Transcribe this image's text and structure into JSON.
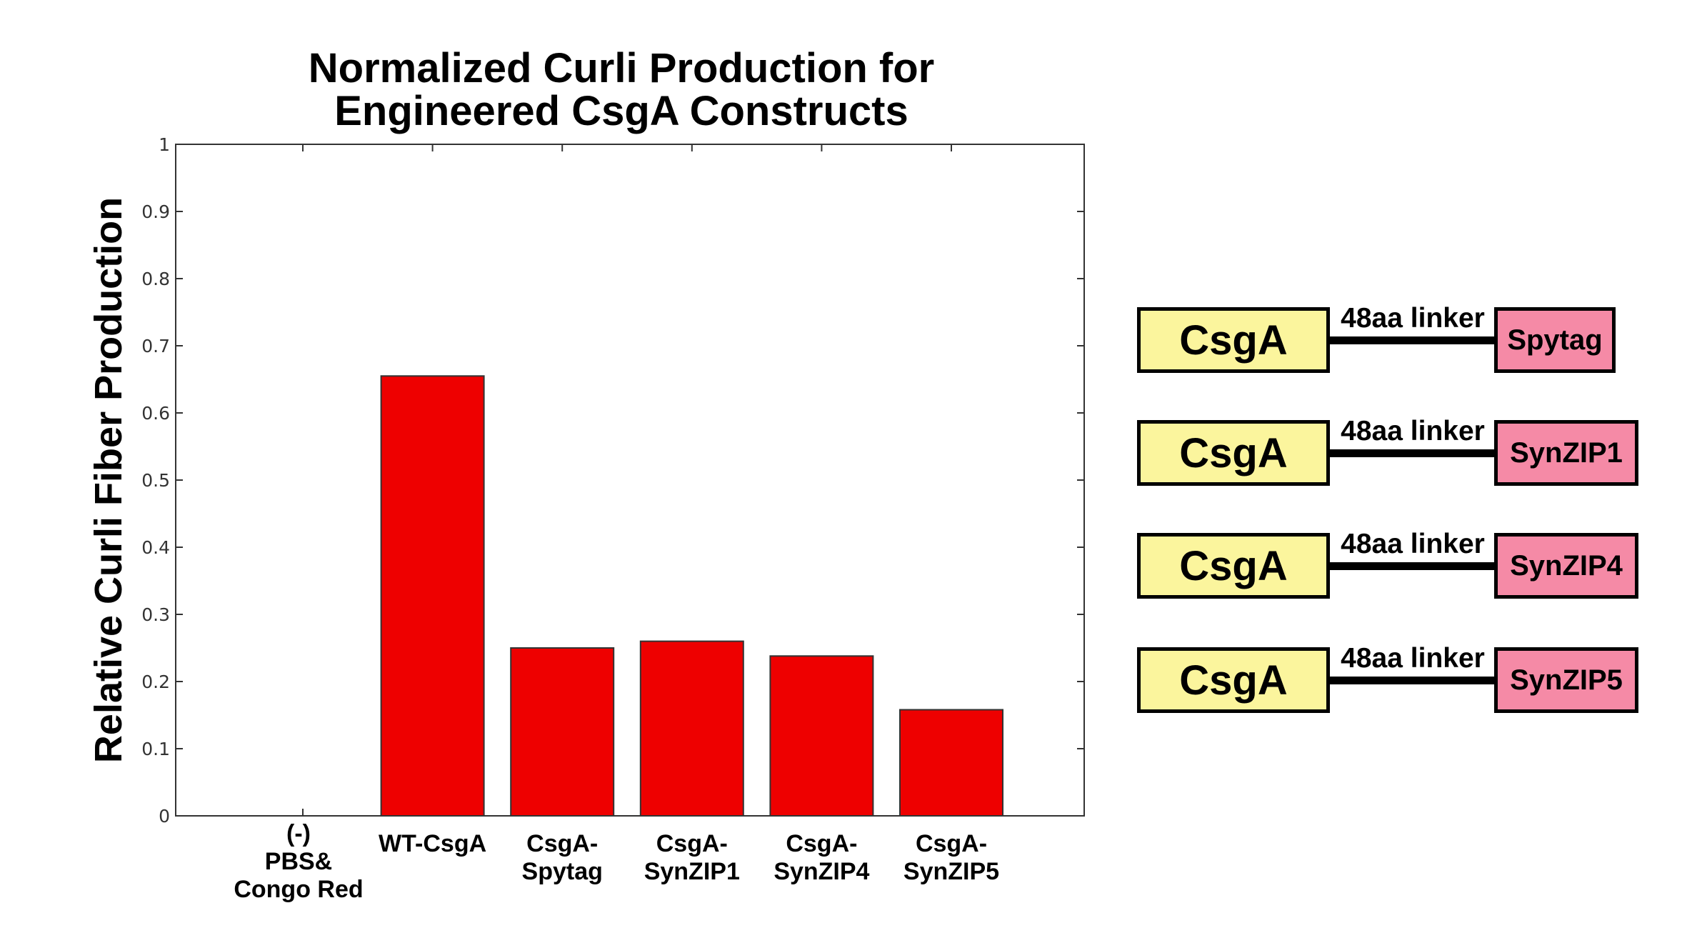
{
  "chart_data": {
    "type": "bar",
    "title": [
      "Normalized Curli Production for",
      "Engineered CsgA Constructs"
    ],
    "xlabel": "",
    "ylabel": "Relative Curli Fiber Production",
    "ylim": [
      0,
      1
    ],
    "yticks": [
      "0",
      "0.1",
      "0.2",
      "0.3",
      "0.4",
      "0.5",
      "0.6",
      "0.7",
      "0.8",
      "0.9",
      "1"
    ],
    "categories": [
      [
        "(-)",
        "PBS&",
        "Congo Red"
      ],
      [
        "WT-CsgA"
      ],
      [
        "CsgA-",
        "Spytag"
      ],
      [
        "CsgA-",
        "SynZIP1"
      ],
      [
        "CsgA-",
        "SynZIP4"
      ],
      [
        "CsgA-",
        "SynZIP5"
      ]
    ],
    "values": [
      0,
      0.655,
      0.25,
      0.26,
      0.238,
      0.158
    ],
    "bar_color": "#ee0000",
    "grid": false
  },
  "constructs": [
    {
      "domain": "CsgA",
      "linker": "48aa linker",
      "tag": "Spytag"
    },
    {
      "domain": "CsgA",
      "linker": "48aa linker",
      "tag": "SynZIP1"
    },
    {
      "domain": "CsgA",
      "linker": "48aa linker",
      "tag": "SynZIP4"
    },
    {
      "domain": "CsgA",
      "linker": "48aa linker",
      "tag": "SynZIP5"
    }
  ],
  "colors": {
    "csga_box": "#fbf59d",
    "tag_box": "#f58aa6",
    "bars": "#ee0000"
  }
}
